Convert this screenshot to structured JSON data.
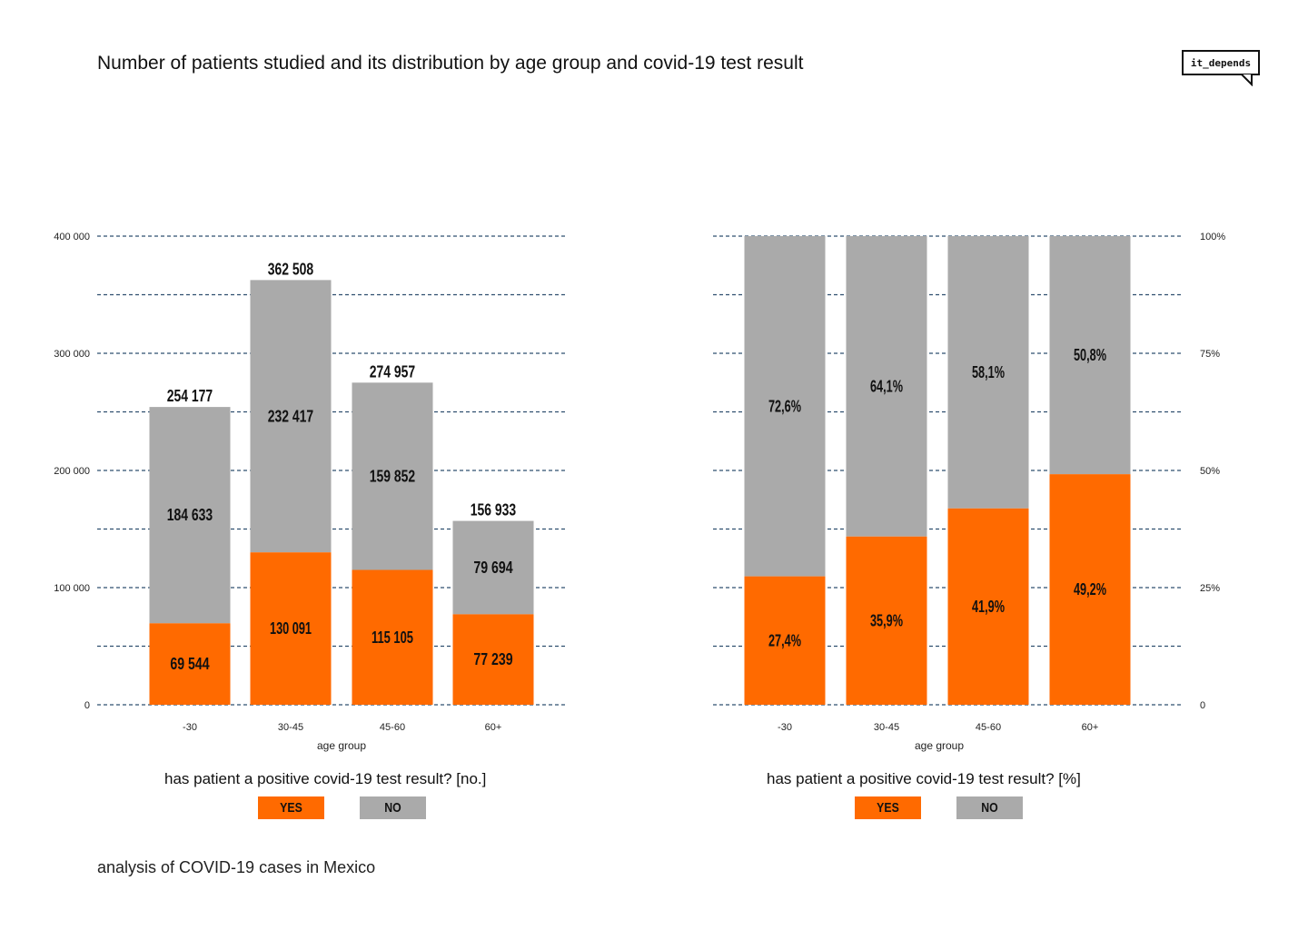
{
  "title": "Number of patients studied and its distribution by age group and covid-19 test result",
  "logo": "it_depends",
  "footer": "analysis of COVID-19 cases in Mexico",
  "colors": {
    "yes": "#ff6a00",
    "no": "#aaaaaa",
    "grid": "#2f4f6f"
  },
  "legend_left": {
    "title": "has patient a positive covid-19 test result? [no.]",
    "yes": "YES",
    "no": "NO"
  },
  "legend_right": {
    "title": "has patient a positive covid-19 test result? [%]",
    "yes": "YES",
    "no": "NO"
  },
  "chart_data": [
    {
      "type": "bar",
      "stacked": true,
      "categories": [
        "-30",
        "30-45",
        "45-60",
        "60+"
      ],
      "xlabel": "age group",
      "ylim": [
        0,
        400000
      ],
      "yticks": [
        0,
        100000,
        200000,
        300000,
        400000
      ],
      "ytick_labels": [
        "0",
        "100 000",
        "200 000",
        "300 000",
        "400 000"
      ],
      "series": [
        {
          "name": "YES",
          "values": [
            69544,
            130091,
            115105,
            77239
          ],
          "labels": [
            "69 544",
            "130 091",
            "115 105",
            "77 239"
          ]
        },
        {
          "name": "NO",
          "values": [
            184633,
            232417,
            159852,
            79694
          ],
          "labels": [
            "184 633",
            "232 417",
            "159 852",
            "79 694"
          ]
        }
      ],
      "totals": [
        "254 177",
        "362 508",
        "274 957",
        "156 933"
      ]
    },
    {
      "type": "bar",
      "stacked": true,
      "percent": true,
      "categories": [
        "-30",
        "30-45",
        "45-60",
        "60+"
      ],
      "xlabel": "age group",
      "ylim": [
        0,
        100
      ],
      "yticks": [
        0,
        25,
        50,
        75,
        100
      ],
      "ytick_labels": [
        "0",
        "25%",
        "50%",
        "75%",
        "100%"
      ],
      "series": [
        {
          "name": "YES",
          "values": [
            27.4,
            35.9,
            41.9,
            49.2
          ],
          "labels": [
            "27,4%",
            "35,9%",
            "41,9%",
            "49,2%"
          ]
        },
        {
          "name": "NO",
          "values": [
            72.6,
            64.1,
            58.1,
            50.8
          ],
          "labels": [
            "72,6%",
            "64,1%",
            "58,1%",
            "50,8%"
          ]
        }
      ]
    }
  ]
}
